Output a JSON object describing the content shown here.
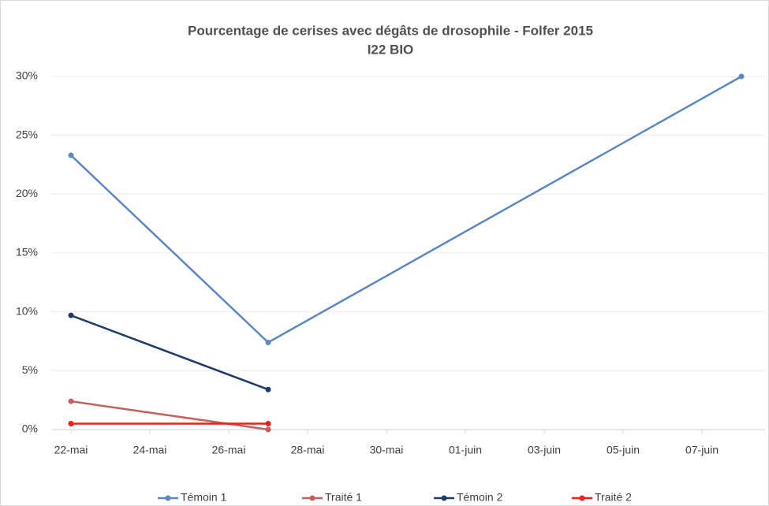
{
  "chart_data": {
    "type": "line",
    "title": "Pourcentage de cerises avec dégâts de drosophile - Folfer 2015",
    "subtitle": "I22 BIO",
    "x": [
      "22-mai",
      "27-mai",
      "08-juin"
    ],
    "series": [
      {
        "name": "Témoin 1",
        "color": "#5b87c4",
        "values": [
          23.3,
          7.4,
          30
        ]
      },
      {
        "name": "Traité 1",
        "color": "#c4615e",
        "values": [
          2.4,
          0,
          null
        ]
      },
      {
        "name": "Témoin 2",
        "color": "#1f3a68",
        "values": [
          9.7,
          3.4,
          null
        ]
      },
      {
        "name": "Traité 2",
        "color": "#e8201c",
        "values": [
          0.5,
          0.5,
          null
        ]
      }
    ],
    "xlim": [
      "21-mai",
      "08-juin"
    ],
    "xticks": [
      "22-mai",
      "24-mai",
      "26-mai",
      "28-mai",
      "30-mai",
      "01-juin",
      "03-juin",
      "05-juin",
      "07-juin"
    ],
    "ylim": [
      0,
      30
    ],
    "yticks": [
      {
        "value": 0,
        "label": "0%"
      },
      {
        "value": 5,
        "label": "5%"
      },
      {
        "value": 10,
        "label": "10%"
      },
      {
        "value": 15,
        "label": "15%"
      },
      {
        "value": 20,
        "label": "20%"
      },
      {
        "value": 25,
        "label": "25%"
      },
      {
        "value": 30,
        "label": "30%"
      }
    ],
    "grid": true,
    "legend": "bottom"
  }
}
